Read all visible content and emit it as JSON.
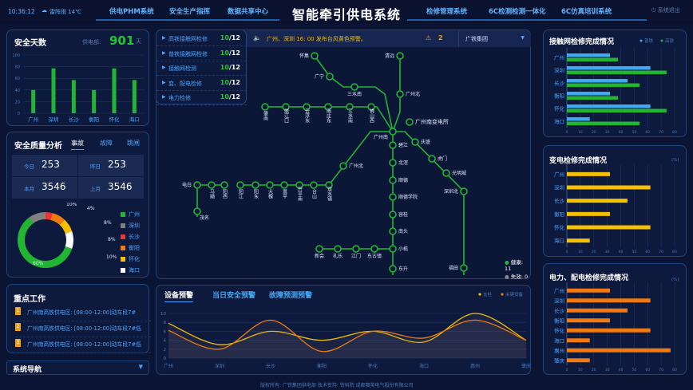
{
  "header": {
    "time": "10:36:12",
    "weather": "雷阵雨 14℃",
    "title": "智能牵引供电系统",
    "nav_left": [
      "供电PHM系统",
      "安全生产指挥",
      "数据共享中心"
    ],
    "nav_right": [
      "检修管理系统",
      "6C检测检测一体化",
      "6C仿真培训系统"
    ],
    "logout": "系统退出"
  },
  "safety_days": {
    "title": "安全天数",
    "dept_label": "供电部:",
    "value": "901",
    "unit": "天",
    "chart_data": {
      "type": "bar",
      "categories": [
        "广州",
        "深圳",
        "长沙",
        "衡阳",
        "怀化",
        "海口"
      ],
      "values": [
        40,
        77,
        57,
        40,
        77,
        57
      ],
      "ylim": [
        0,
        100
      ],
      "yticks": [
        0,
        20,
        40,
        60,
        80,
        100
      ],
      "color": "#22b533",
      "grid": true
    }
  },
  "quality": {
    "title": "安全质量分析",
    "tabs": [
      "事故",
      "故障",
      "跳闸"
    ],
    "active_tab": 0,
    "stats": [
      {
        "label": "今日",
        "value": "253"
      },
      {
        "label": "昨日",
        "value": "253"
      },
      {
        "label": "本月",
        "value": "3546"
      },
      {
        "label": "上月",
        "value": "3546"
      }
    ],
    "chart_data": {
      "type": "pie",
      "donut": true,
      "categories": [
        "广州",
        "深圳",
        "长沙",
        "衡阳",
        "怀化",
        "海口"
      ],
      "values": [
        60,
        10,
        4,
        8,
        8,
        10
      ],
      "labels": [
        "60%",
        "10%",
        "4%",
        "8%",
        "8%",
        "10%"
      ],
      "colors": [
        "#22b533",
        "#808080",
        "#ee3333",
        "#f07a10",
        "#f5c000",
        "#ffffff"
      ],
      "legend": "right"
    }
  },
  "key_work": {
    "title": "重点工作",
    "items": [
      {
        "rank": "1",
        "text": "广州南高铁供电区: [08:00-12:00]动车段7#"
      },
      {
        "rank": "2",
        "text": "广州南高铁供电区: [08:00-12:00]动车段7#低"
      },
      {
        "rank": "3",
        "text": "广州南高铁供电区: [08:00-12:00]动车段7#低"
      }
    ]
  },
  "system_nav": {
    "label": "系统导航"
  },
  "tasks": [
    {
      "label": "高铁接触网检修",
      "done": "10",
      "total": "/12"
    },
    {
      "label": "普铁接触网检修",
      "done": "10",
      "total": "/12"
    },
    {
      "label": "接触网检测",
      "done": "10",
      "total": "/12"
    },
    {
      "label": "变、配电检修",
      "done": "10",
      "total": "/12"
    },
    {
      "label": "电力检修",
      "done": "10",
      "total": "/12"
    }
  ],
  "alert": {
    "text": "广州、深圳 16: 00 发布台风黄色预警。",
    "warning_count": "2",
    "org_select": "广铁集团"
  },
  "map": {
    "stations": [
      "怀集",
      "广宁",
      "三水南",
      "清远",
      "广州北",
      "肇南",
      "鼎江口",
      "云浮东",
      "南庄东",
      "三水南",
      "佛山西",
      "广州南",
      "广州南变电所",
      "碧江",
      "北滘",
      "顺德",
      "顺德学院",
      "容桂",
      "南头",
      "小榄",
      "东升",
      "庆盛",
      "虎门",
      "光明城",
      "深圳北",
      "福田",
      "广州北",
      "双水镇",
      "台山",
      "开平南",
      "恩平",
      "大槐",
      "阳东",
      "阳江",
      "阳西",
      "马踏",
      "电白",
      "茂名",
      "新会",
      "礼乐",
      "江门",
      "东古镇"
    ],
    "legend": [
      {
        "label": "健康:",
        "value": "11",
        "color": "#22b533"
      },
      {
        "label": "失效:",
        "value": "0",
        "color": "#888888"
      }
    ]
  },
  "warning": {
    "tabs": [
      "设备预警",
      "当日安全预警",
      "故障预测预警"
    ],
    "active_tab": 0,
    "chart_data": {
      "type": "line",
      "smooth": true,
      "categories": [
        "广州",
        "深圳",
        "长沙",
        "衡阳",
        "怀化",
        "海口",
        "惠州",
        "肇庆"
      ],
      "ylim": [
        0,
        10
      ],
      "yticks": [
        0,
        2,
        4,
        6,
        8,
        10
      ],
      "legend": "top-right",
      "series": [
        {
          "name": "支柱",
          "color": "#f5c000",
          "values": [
            7.8,
            3,
            6,
            4,
            6,
            3.6,
            10,
            4
          ]
        },
        {
          "name": "关键设备",
          "color": "#f07a10",
          "values": [
            6.2,
            2,
            8.5,
            1.5,
            6,
            4.5,
            8.5,
            4
          ]
        }
      ]
    }
  },
  "footer": "版权所有: 广铁集团供电部 技术支持: 铁科院 成都赛英电气股份有限公司",
  "contact_chart": {
    "title": "接触网检修完成情况",
    "chart_data": {
      "type": "bar",
      "orientation": "horizontal",
      "categories": [
        "广州",
        "深圳",
        "长沙",
        "衡阳",
        "怀化",
        "海口"
      ],
      "xlim": [
        0,
        80
      ],
      "xticks": [
        0,
        10,
        20,
        30,
        40,
        50,
        60,
        70,
        80
      ],
      "legend": "top-right",
      "series": [
        {
          "name": "普铁",
          "color": "#41a8f5",
          "values": [
            32,
            62,
            45,
            32,
            62,
            17
          ]
        },
        {
          "name": "高铁",
          "color": "#22b533",
          "values": [
            38,
            74,
            54,
            38,
            74,
            54
          ]
        }
      ]
    }
  },
  "substation_chart": {
    "title": "变电检修完成情况",
    "unit": "(%)",
    "chart_data": {
      "type": "bar",
      "orientation": "horizontal",
      "categories": [
        "广州",
        "深圳",
        "长沙",
        "衡阳",
        "怀化",
        "海口"
      ],
      "xlim": [
        0,
        80
      ],
      "xticks": [
        0,
        10,
        20,
        30,
        40,
        50,
        60,
        70,
        80
      ],
      "series": [
        {
          "color": "#f5c000",
          "values": [
            32,
            62,
            45,
            32,
            62,
            17
          ]
        }
      ]
    }
  },
  "power_chart": {
    "title": "电力、配电检修完成情况",
    "unit": "(%)",
    "chart_data": {
      "type": "bar",
      "orientation": "horizontal",
      "categories": [
        "广州",
        "深圳",
        "长沙",
        "衡阳",
        "怀化",
        "海口",
        "惠州",
        "肇庆"
      ],
      "xlim": [
        0,
        80
      ],
      "xticks": [
        0,
        10,
        20,
        30,
        40,
        50,
        60,
        70,
        80
      ],
      "series": [
        {
          "color": "#f07a10",
          "values": [
            32,
            62,
            45,
            32,
            62,
            17,
            77,
            17
          ]
        }
      ]
    }
  }
}
